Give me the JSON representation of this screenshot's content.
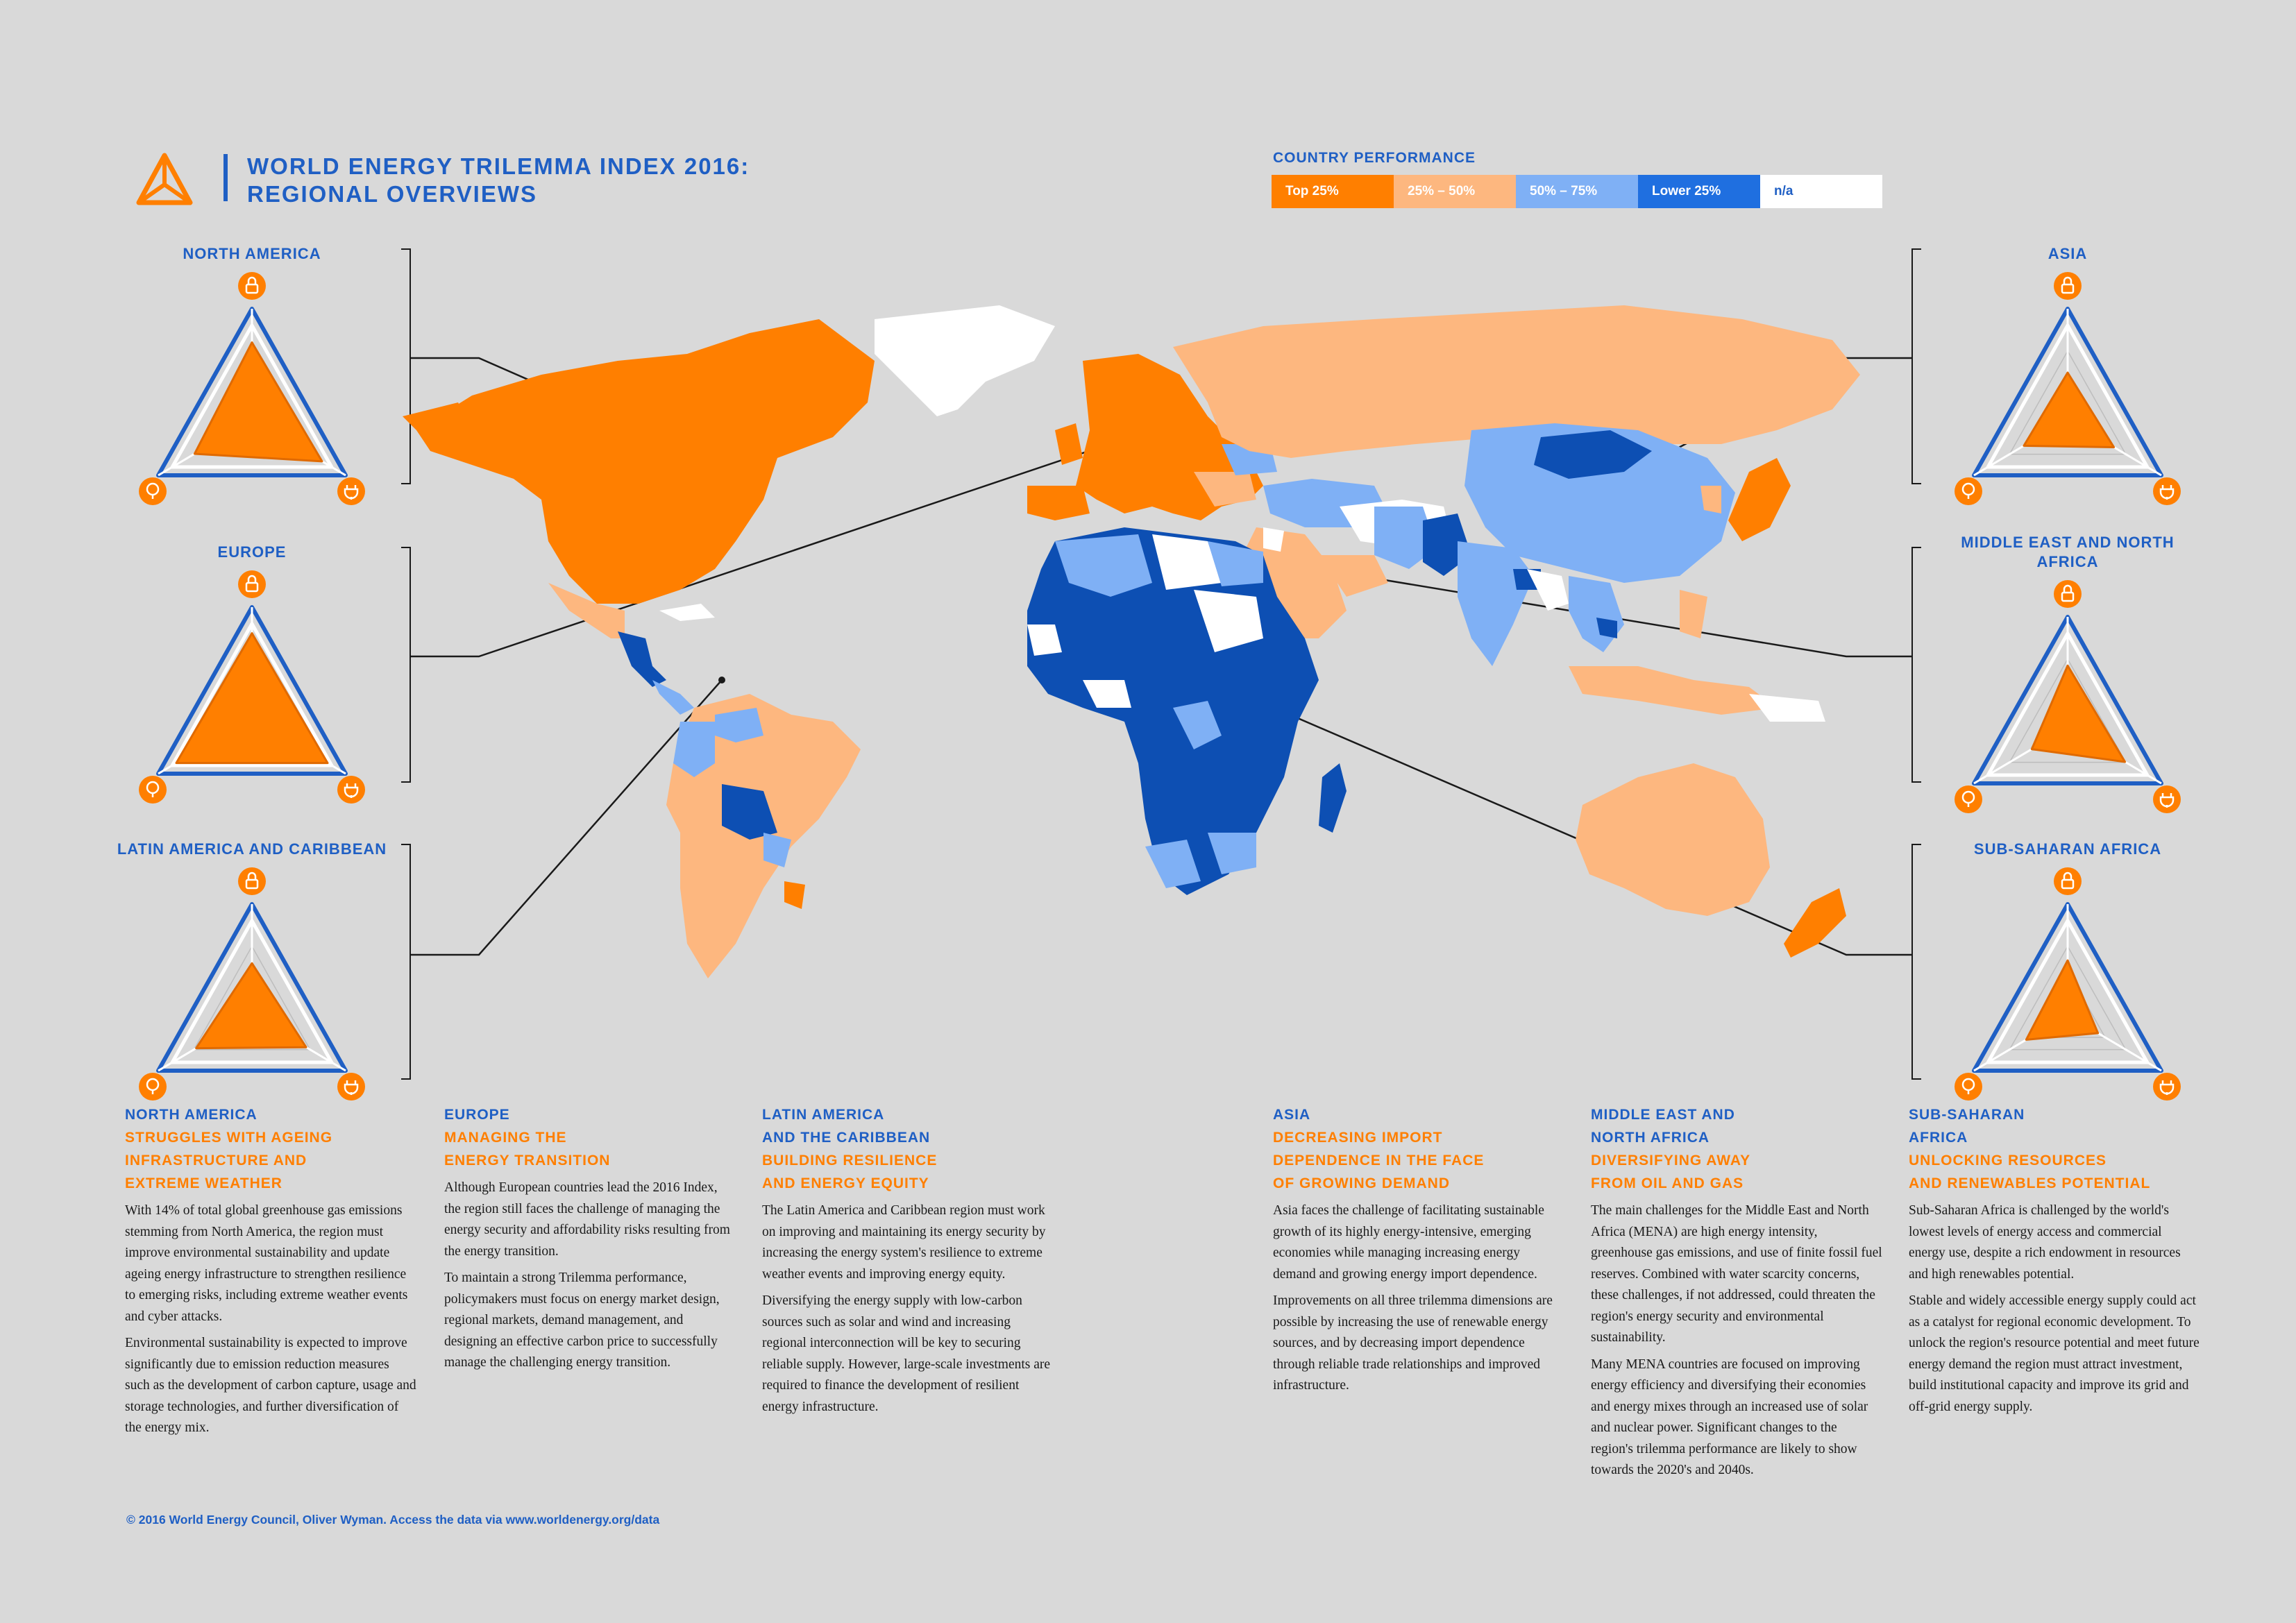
{
  "header": {
    "title_line1": "WORLD ENERGY TRILEMMA INDEX 2016:",
    "title_line2": "REGIONAL OVERVIEWS"
  },
  "legend": {
    "title": "COUNTRY PERFORMANCE",
    "items": [
      {
        "label": "Top 25%",
        "color": "#ff7f00",
        "text_color": "#ffffff"
      },
      {
        "label": "25% – 50%",
        "color": "#fdb77f",
        "text_color": "#ffffff"
      },
      {
        "label": "50% – 75%",
        "color": "#7fb0f5",
        "text_color": "#ffffff"
      },
      {
        "label": "Lower 25%",
        "color": "#1f6fe0",
        "text_color": "#ffffff"
      },
      {
        "label": "n/a",
        "color": "#ffffff",
        "text_color": "#1f5fc4"
      }
    ]
  },
  "colors": {
    "top25": "#ff7f00",
    "q2": "#fdb77f",
    "q3": "#7fb0f5",
    "lower25": "#1f6fe0",
    "dark": "#0d4fb3",
    "na": "#ffffff",
    "accent_blue": "#1f5fc4"
  },
  "icons": [
    "lock-icon",
    "leaf-icon",
    "plug-icon"
  ],
  "radars": [
    {
      "id": "north-america",
      "label": "NORTH AMERICA",
      "scores": [
        0.82,
        0.72,
        0.88
      ]
    },
    {
      "id": "europe",
      "label": "EUROPE",
      "scores": [
        0.9,
        0.95,
        0.95
      ]
    },
    {
      "id": "latin-america",
      "label": "LATIN AMERICA AND CARIBBEAN",
      "scores": [
        0.55,
        0.7,
        0.68
      ]
    },
    {
      "id": "asia",
      "label": "ASIA",
      "scores": [
        0.5,
        0.55,
        0.58
      ]
    },
    {
      "id": "mena",
      "label": "MIDDLE EAST AND NORTH AFRICA",
      "scores": [
        0.66,
        0.45,
        0.72
      ]
    },
    {
      "id": "ssa",
      "label": "SUB-SAHARAN AFRICA",
      "scores": [
        0.58,
        0.52,
        0.38
      ]
    }
  ],
  "columns": [
    {
      "h1": [
        "NORTH AMERICA"
      ],
      "h2": [
        "STRUGGLES WITH AGEING",
        "INFRASTRUCTURE AND",
        "EXTREME WEATHER"
      ],
      "paragraphs": [
        "With 14% of total global greenhouse gas emissions stemming from North America, the region must improve environmental sustainability and update ageing energy infrastructure to strengthen resilience to emerging risks, including extreme weather events and cyber attacks.",
        "Environmental sustainability is expected to improve significantly due to emission reduction measures such as the development of carbon capture, usage and storage technologies, and further diversification of the energy mix."
      ]
    },
    {
      "h1": [
        "EUROPE"
      ],
      "h2": [
        "MANAGING THE",
        "ENERGY TRANSITION"
      ],
      "paragraphs": [
        "Although European countries lead the 2016 Index, the region still faces the challenge of managing the energy security and affordability risks resulting from the energy transition.",
        "To maintain a strong Trilemma performance, policymakers must focus on energy market design, regional markets, demand management, and designing an effective carbon price to successfully manage the challenging energy transition."
      ]
    },
    {
      "h1": [
        "LATIN AMERICA",
        "AND THE CARIBBEAN"
      ],
      "h2": [
        "BUILDING RESILIENCE",
        "AND ENERGY EQUITY"
      ],
      "paragraphs": [
        "The Latin America and Caribbean region must work on improving and maintaining its energy security by increasing the energy system's resilience to extreme weather events and improving energy equity.",
        "Diversifying the energy supply with low-carbon sources such as solar and wind and increasing regional interconnection will be key to securing reliable supply. However, large-scale investments are required to finance the development of resilient energy infrastructure."
      ]
    },
    {
      "h1": [
        "ASIA"
      ],
      "h2": [
        "DECREASING IMPORT",
        "DEPENDENCE IN THE FACE",
        "OF GROWING DEMAND"
      ],
      "paragraphs": [
        "Asia faces the challenge of facilitating sustainable growth of its highly energy-intensive, emerging economies while managing increasing energy demand and growing energy import dependence.",
        "Improvements on all three trilemma dimensions are possible by increasing the use of renewable energy sources, and by decreasing import dependence through reliable trade relationships and improved infrastructure."
      ]
    },
    {
      "h1": [
        "MIDDLE EAST AND",
        "NORTH AFRICA"
      ],
      "h2": [
        "DIVERSIFYING AWAY",
        "FROM OIL AND GAS"
      ],
      "paragraphs": [
        "The main challenges for the Middle East and North Africa (MENA) are high energy intensity, greenhouse gas emissions, and use of finite fossil fuel reserves. Combined with water scarcity concerns, these challenges, if not addressed, could threaten the region's energy security and environmental sustainability.",
        "Many MENA countries are focused on improving energy efficiency and diversifying their economies and energy mixes through an increased use of solar and nuclear power. Significant changes to the region's trilemma performance are likely to show towards the 2020's and 2040s."
      ]
    },
    {
      "h1": [
        "SUB-SAHARAN",
        "AFRICA"
      ],
      "h2": [
        "UNLOCKING RESOURCES",
        "AND RENEWABLES POTENTIAL"
      ],
      "paragraphs": [
        "Sub-Saharan Africa is challenged by the world's lowest levels of energy access and commercial energy use, despite a rich endowment in resources and high renewables potential.",
        "Stable and widely accessible energy supply could act as a catalyst for regional economic development. To unlock the region's resource potential and meet future energy demand the region must attract investment, build institutional capacity and improve its grid and off-grid energy supply."
      ]
    }
  ],
  "footer": "© 2016 World Energy Council, Oliver Wyman. Access the data via www.worldenergy.org/data"
}
